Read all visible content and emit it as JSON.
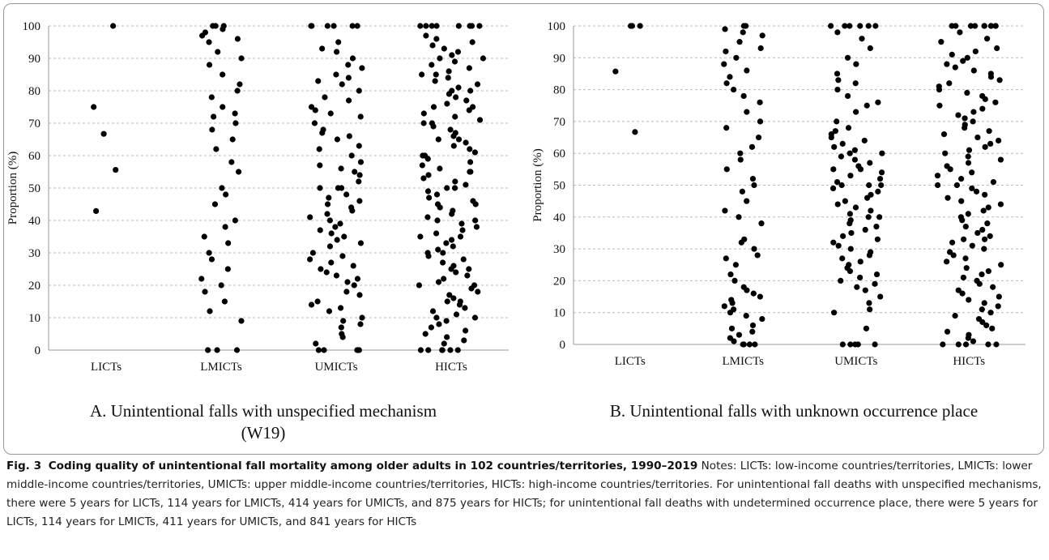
{
  "chart_data": [
    {
      "type": "strip",
      "title": "A. Unintentional falls with unspecified mechanism (W19)",
      "ylabel": "Proportion (%)",
      "categories": [
        "LICTs",
        "LMICTs",
        "UMICTs",
        "HICTs"
      ],
      "color": "#000000",
      "ylim": [
        0,
        100
      ],
      "yticks": [
        0,
        10,
        20,
        30,
        40,
        50,
        60,
        70,
        80,
        90,
        100
      ],
      "grid": true,
      "values": [
        [
          100,
          75,
          66.7,
          55.6,
          42.9
        ],
        [
          100,
          100,
          100,
          99,
          98,
          97,
          96,
          95,
          92,
          90,
          88,
          85,
          82,
          80,
          78,
          75,
          73,
          72,
          70,
          68,
          65,
          62,
          58,
          55,
          50,
          48,
          45,
          40,
          38,
          35,
          33,
          30,
          28,
          25,
          22,
          20,
          18,
          15,
          12,
          9,
          0,
          0,
          0
        ],
        [
          100,
          100,
          100,
          100,
          100,
          100,
          95,
          93,
          92,
          90,
          88,
          87,
          85,
          84,
          83,
          82,
          80,
          78,
          77,
          75,
          74,
          73,
          72,
          70,
          68,
          67,
          66,
          65,
          63,
          62,
          60,
          58,
          57,
          56,
          55,
          54,
          52,
          50,
          50,
          50,
          48,
          47,
          46,
          45,
          44,
          43,
          42,
          41,
          40,
          39,
          38,
          37,
          36,
          35,
          34,
          33,
          32,
          30,
          29,
          28,
          27,
          26,
          25,
          24,
          23,
          22,
          21,
          20,
          18,
          17,
          15,
          14,
          13,
          12,
          10,
          9,
          8,
          7,
          5,
          4,
          2,
          0,
          0,
          0,
          0,
          0
        ],
        [
          100,
          100,
          100,
          100,
          100,
          100,
          100,
          100,
          97,
          96,
          95,
          94,
          93,
          92,
          91,
          90,
          90,
          89,
          88,
          87,
          86,
          85,
          85,
          84,
          83,
          82,
          81,
          80,
          80,
          79,
          78,
          77,
          76,
          75,
          75,
          74,
          73,
          72,
          71,
          70,
          70,
          69,
          68,
          67,
          66,
          65,
          65,
          64,
          63,
          62,
          61,
          60,
          60,
          59,
          58,
          57,
          56,
          55,
          55,
          54,
          53,
          52,
          51,
          50,
          50,
          49,
          48,
          47,
          46,
          45,
          45,
          44,
          43,
          42,
          41,
          40,
          40,
          39,
          38,
          37,
          36,
          35,
          35,
          34,
          33,
          32,
          31,
          30,
          30,
          29,
          28,
          27,
          26,
          25,
          25,
          24,
          23,
          22,
          21,
          20,
          20,
          19,
          18,
          17,
          16,
          15,
          15,
          14,
          13,
          12,
          11,
          10,
          10,
          9,
          8,
          7,
          6,
          5,
          4,
          3,
          2,
          0,
          0,
          0,
          0,
          0,
          0
        ]
      ]
    },
    {
      "type": "strip",
      "title": "B. Unintentional falls with unknown occurrence place",
      "ylabel": "Proportion (%)",
      "categories": [
        "LICTs",
        "LMICTs",
        "UMICTs",
        "HICTs"
      ],
      "color": "#000000",
      "ylim": [
        0,
        100
      ],
      "yticks": [
        0,
        10,
        20,
        30,
        40,
        50,
        60,
        70,
        80,
        90,
        100
      ],
      "grid": true,
      "values": [
        [
          100,
          100,
          100,
          85.7,
          66.7
        ],
        [
          100,
          100,
          99,
          98,
          97,
          95,
          93,
          92,
          90,
          88,
          86,
          84,
          82,
          80,
          78,
          76,
          73,
          70,
          68,
          65,
          62,
          60,
          58,
          55,
          52,
          50,
          48,
          45,
          42,
          40,
          38,
          33,
          32,
          30,
          28,
          27,
          25,
          22,
          20,
          18,
          17,
          16,
          15,
          14,
          13,
          12,
          11,
          10,
          9,
          8,
          6,
          5,
          4,
          3,
          2,
          1,
          0,
          0,
          0,
          0
        ],
        [
          100,
          100,
          100,
          100,
          100,
          100,
          98,
          96,
          93,
          90,
          88,
          85,
          83,
          82,
          80,
          78,
          76,
          75,
          73,
          70,
          68,
          67,
          66,
          65,
          64,
          63,
          62,
          61,
          60,
          60,
          59,
          58,
          57,
          56,
          55,
          55,
          54,
          53,
          52,
          51,
          50,
          50,
          50,
          49,
          48,
          47,
          46,
          45,
          44,
          43,
          42,
          41,
          40,
          40,
          39,
          38,
          37,
          36,
          35,
          34,
          33,
          32,
          31,
          30,
          29,
          28,
          27,
          26,
          25,
          24,
          23,
          22,
          21,
          20,
          19,
          18,
          17,
          15,
          13,
          11,
          10,
          5,
          0,
          0,
          0,
          0,
          0
        ],
        [
          100,
          100,
          100,
          100,
          100,
          100,
          100,
          100,
          100,
          100,
          98,
          96,
          95,
          93,
          92,
          91,
          90,
          89,
          88,
          87,
          86,
          85,
          84,
          83,
          82,
          81,
          80,
          79,
          78,
          77,
          76,
          75,
          74,
          73,
          72,
          71,
          70,
          69,
          68,
          67,
          66,
          65,
          64,
          63,
          62,
          61,
          60,
          59,
          58,
          57,
          56,
          55,
          54,
          53,
          52,
          51,
          50,
          50,
          49,
          48,
          47,
          46,
          45,
          44,
          43,
          42,
          41,
          40,
          39,
          38,
          37,
          36,
          35,
          34,
          33,
          33,
          32,
          31,
          30,
          29,
          28,
          27,
          26,
          25,
          24,
          23,
          22,
          21,
          20,
          19,
          18,
          17,
          16,
          15,
          14,
          13,
          12,
          11,
          10,
          9,
          8,
          7,
          6,
          5,
          4,
          3,
          2,
          1,
          0,
          0,
          0,
          0,
          0
        ]
      ]
    }
  ],
  "caption": {
    "label": "Fig. 3",
    "title": "Coding quality of unintentional fall mortality among older adults in 102 countries/territories, 1990–2019",
    "notes": "Notes: LICTs: low-income countries/territories, LMICTs: lower middle-income countries/territories, UMICTs: upper middle-income countries/territories, HICTs: high-income countries/territories. For unintentional fall deaths with unspecified mechanisms, there were 5 years for LICTs, 114 years for LMICTs, 414 years for UMICTs, and 875 years for HICTs; for unintentional fall deaths with undetermined occurrence place, there were 5 years for LICTs, 114 years for LMICTs, 411 years for UMICTs, and 841 years for HICTs"
  }
}
